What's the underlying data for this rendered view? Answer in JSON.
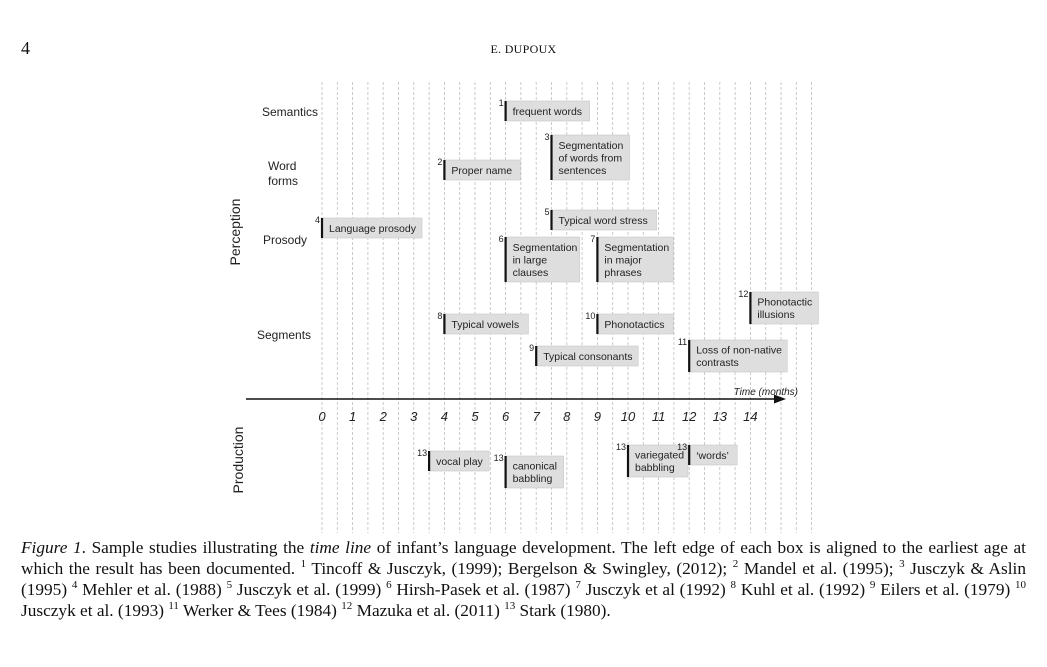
{
  "header": {
    "page_number": "4",
    "running_head": "E. DUPOUX"
  },
  "figure": {
    "section_labels": {
      "perception": "Perception",
      "production": "Production"
    },
    "row_labels": {
      "semantics": "Semantics",
      "word_forms_1": "Word",
      "word_forms_2": "forms",
      "prosody": "Prosody",
      "segments": "Segments"
    },
    "axis": {
      "label": "Time (months)",
      "ticks": [
        "0",
        "1",
        "2",
        "3",
        "4",
        "5",
        "6",
        "7",
        "8",
        "9",
        "10",
        "11",
        "12",
        "13",
        "14"
      ]
    },
    "perception_boxes": [
      {
        "ref": "1",
        "age": 6,
        "lines": [
          "frequent words"
        ]
      },
      {
        "ref": "3",
        "age": 7.5,
        "lines": [
          "Segmentation",
          "of words from",
          "sentences"
        ]
      },
      {
        "ref": "2",
        "age": 4,
        "lines": [
          "Proper name"
        ]
      },
      {
        "ref": "5",
        "age": 7.5,
        "lines": [
          "Typical word stress"
        ]
      },
      {
        "ref": "4",
        "age": 0,
        "lines": [
          "Language prosody"
        ]
      },
      {
        "ref": "6",
        "age": 6,
        "lines": [
          "Segmentation",
          "in large",
          "clauses"
        ]
      },
      {
        "ref": "7",
        "age": 9,
        "lines": [
          "Segmentation",
          "in major",
          "phrases"
        ]
      },
      {
        "ref": "12",
        "age": 14,
        "lines": [
          "Phonotactic",
          "illusions"
        ]
      },
      {
        "ref": "8",
        "age": 4,
        "lines": [
          "Typical vowels"
        ]
      },
      {
        "ref": "10",
        "age": 9,
        "lines": [
          "Phonotactics"
        ]
      },
      {
        "ref": "9",
        "age": 7,
        "lines": [
          "Typical consonants"
        ]
      },
      {
        "ref": "11",
        "age": 12,
        "lines": [
          "Loss of non-native",
          "contrasts"
        ]
      }
    ],
    "production_boxes": [
      {
        "ref": "13",
        "age": 3.5,
        "lines": [
          "vocal play"
        ]
      },
      {
        "ref": "13",
        "age": 6,
        "lines": [
          "canonical",
          "babbling"
        ]
      },
      {
        "ref": "13",
        "age": 10,
        "lines": [
          "variegated",
          "babbling"
        ]
      },
      {
        "ref": "13",
        "age": 12,
        "lines": [
          "‘words’"
        ]
      }
    ]
  },
  "caption": {
    "figure_label": "Figure 1",
    "t1": ". Sample studies illustrating the ",
    "t2_italic": "time line",
    "t3": " of infant’s language development. The left edge of each box is aligned to the earliest age at which the result has been documented. ",
    "r1": "1",
    "c1": " Tincoff & Jusczyk, (1999); Bergelson & Swingley, (2012); ",
    "r2": "2",
    "c2": " Mandel et al. (1995); ",
    "r3": "3",
    "c3": " Jusczyk & Aslin (1995) ",
    "r4": "4",
    "c4": " Mehler et al. (1988) ",
    "r5": "5",
    "c5": " Jusczyk et al. (1999) ",
    "r6": "6",
    "c6": " Hirsh-Pasek et al. (1987) ",
    "r7": "7",
    "c7": " Jusczyk et al (1992) ",
    "r8": "8",
    "c8": " Kuhl et al. (1992) ",
    "r9": "9",
    "c9": " Eilers et al. (1979) ",
    "r10": "10",
    "c10": " Jusczyk et al. (1993) ",
    "r11": "11",
    "c11": " Werker & Tees (1984) ",
    "r12": "12",
    "c12": " Mazuka et al. (2011) ",
    "r13": "13",
    "c13": " Stark (1980)."
  }
}
